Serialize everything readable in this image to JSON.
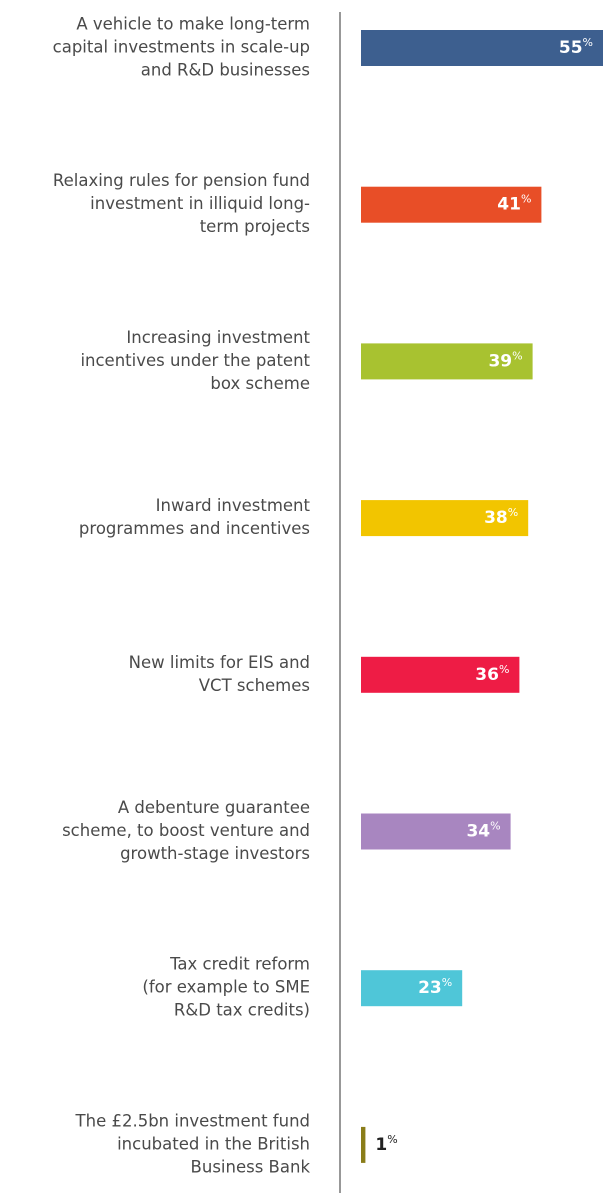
{
  "chart_data": {
    "type": "bar",
    "orientation": "horizontal",
    "categories": [
      [
        "A vehicle to make long-term",
        "capital investments in scale-up",
        "and R&D businesses"
      ],
      [
        "Relaxing rules for pension fund",
        "investment in illiquid long-",
        "term projects"
      ],
      [
        "Increasing investment",
        "incentives under the patent",
        "box scheme"
      ],
      [
        "Inward investment",
        "programmes and incentives"
      ],
      [
        "New limits for EIS and",
        "VCT schemes"
      ],
      [
        "A debenture guarantee",
        "scheme, to boost venture and",
        "growth-stage investors"
      ],
      [
        "Tax credit reform",
        "(for example to SME",
        "R&D tax credits)"
      ],
      [
        "The £2.5bn investment fund",
        "incubated in the British",
        "Business Bank"
      ]
    ],
    "values": [
      55,
      41,
      39,
      38,
      36,
      34,
      23,
      1
    ],
    "value_suffix": "%",
    "colors": [
      "#3d5f8f",
      "#e84e27",
      "#a8c230",
      "#f2c500",
      "#ee1c45",
      "#a886c0",
      "#4fc6d8",
      "#8a7d19"
    ],
    "xlim": [
      0,
      55
    ]
  }
}
